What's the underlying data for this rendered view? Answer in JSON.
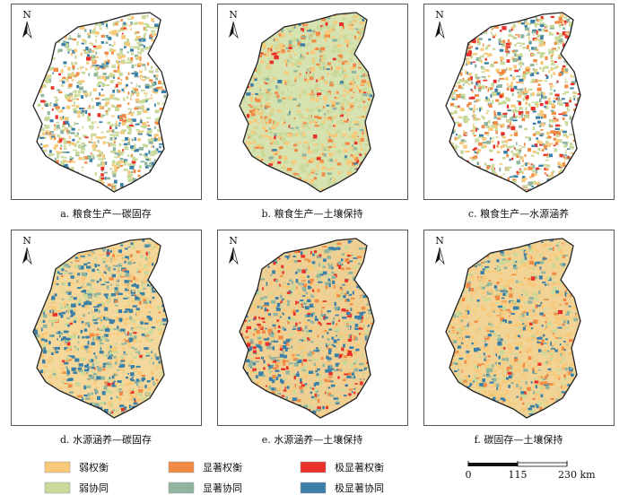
{
  "north": "N",
  "panels": [
    {
      "caption": "a.  粮食生产—碳固存"
    },
    {
      "caption": "b.  粮食生产—土壤保持"
    },
    {
      "caption": "c.  粮食生产—水源涵养"
    },
    {
      "caption": "d.  水源涵养—碳固存"
    },
    {
      "caption": "e.  水源涵养—土壤保持"
    },
    {
      "caption": "f.  碳固存—土壤保持"
    }
  ],
  "legend": [
    {
      "label": "弱权衡",
      "color": "#f9c97a"
    },
    {
      "label": "显著权衡",
      "color": "#f08a45"
    },
    {
      "label": "极显著权衡",
      "color": "#e8312a"
    },
    {
      "label": "弱协同",
      "color": "#c9d99a"
    },
    {
      "label": "显著协同",
      "color": "#8fb5a0"
    },
    {
      "label": "极显著协同",
      "color": "#3a7fa8"
    }
  ],
  "scale_bar": {
    "ticks": [
      0,
      115,
      {
        "value": 230,
        "label": "230 km"
      }
    ]
  }
}
